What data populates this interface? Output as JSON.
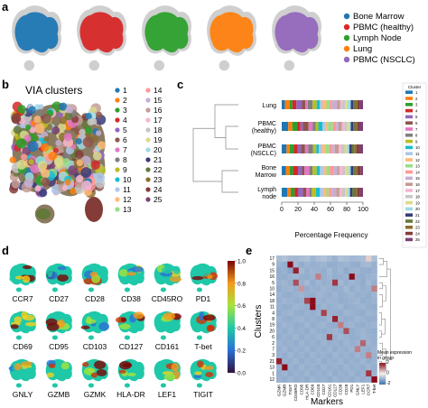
{
  "panels": {
    "a": {
      "letter": "a",
      "legend": [
        {
          "label": "Bone Marrow",
          "color": "#1f77b4"
        },
        {
          "label": "PBMC (healthy)",
          "color": "#d62728"
        },
        {
          "label": "Lymph Node",
          "color": "#2ca02c"
        },
        {
          "label": "Lung",
          "color": "#ff7f0e"
        },
        {
          "label": "PBMC (NSCLC)",
          "color": "#9467bd"
        }
      ],
      "background_color": "#cfcfcf"
    },
    "b": {
      "letter": "b",
      "title": "VIA clusters",
      "clusters": [
        "1",
        "2",
        "3",
        "4",
        "5",
        "6",
        "7",
        "8",
        "9",
        "10",
        "11",
        "12",
        "13",
        "14",
        "15",
        "16",
        "17",
        "18",
        "19",
        "20",
        "21",
        "22",
        "23",
        "24",
        "25"
      ],
      "colors": [
        "#1f77b4",
        "#ff7f0e",
        "#2ca02c",
        "#d62728",
        "#9467bd",
        "#8c564b",
        "#e377c2",
        "#7f7f7f",
        "#bcbd22",
        "#17becf",
        "#aec7e8",
        "#ffbb78",
        "#98df8a",
        "#ff9896",
        "#c5b0d5",
        "#c49c94",
        "#f7b6d2",
        "#c7c7c7",
        "#dbdb8d",
        "#9edae5",
        "#393b79",
        "#637939",
        "#8c6d31",
        "#843c39",
        "#7b4173"
      ]
    },
    "c": {
      "letter": "c",
      "legend_title": "Cluster",
      "row_labels": [
        "Lung",
        "PBMC\n(healthy)",
        "PBMC\n(NSCLC)",
        "Bone\nMarrow",
        "Lymph\nnode"
      ],
      "x_ticks": [
        "0",
        "20",
        "40",
        "60",
        "80",
        "100"
      ],
      "xlabel": "Percentage Frequency"
    },
    "d": {
      "letter": "d",
      "markers": [
        "CCR7",
        "CD27",
        "CD28",
        "CD38",
        "CD45RO",
        "PD1",
        "CD69",
        "CD95",
        "CD103",
        "CD127",
        "CD161",
        "T-bet",
        "GNLY",
        "GZMB",
        "GZMK",
        "HLA-DR",
        "LEF1",
        "TIGIT"
      ],
      "colorbar_ticks": [
        "1.0",
        "0.8",
        "0.6",
        "0.4",
        "0.2",
        "0.0"
      ]
    },
    "e": {
      "letter": "e",
      "ylabel": "Clusters",
      "xlabel": "Markers",
      "row_labels": [
        "17",
        "9",
        "15",
        "16",
        "5",
        "10",
        "14",
        "18",
        "11",
        "4",
        "8",
        "19",
        "20",
        "6",
        "2",
        "7",
        "3",
        "21",
        "13",
        "1",
        "12"
      ],
      "col_labels": [
        "GZMK",
        "GZMB",
        "TIGIT",
        "CD45RO",
        "CD95",
        "HLA-DR",
        "CD69",
        "CD103",
        "CD27",
        "CD161",
        "CD127",
        "CD38",
        "CD28",
        "PD1",
        "GNLY",
        "LEF1",
        "CCR7",
        "T-bet"
      ],
      "colorbar_label": "Mean expression\nin group",
      "colorbar_ticks": [
        "-2",
        "0",
        "2"
      ]
    }
  },
  "chart_data": [
    {
      "type": "bar",
      "stacked": true,
      "orientation": "horizontal",
      "categories": [
        "Lung",
        "PBMC (healthy)",
        "PBMC (NSCLC)",
        "Bone Marrow",
        "Lymph node"
      ],
      "xlabel": "Percentage Frequency",
      "xlim": [
        0,
        100
      ],
      "series_clusters": [
        "1",
        "2",
        "3",
        "4",
        "5",
        "6",
        "7",
        "8",
        "9",
        "10",
        "11",
        "12",
        "13",
        "14",
        "15",
        "16",
        "17",
        "18",
        "19",
        "20",
        "21",
        "22",
        "23",
        "24",
        "25"
      ],
      "values_percent": [
        [
          4,
          6,
          3,
          5,
          7,
          4,
          3,
          6,
          5,
          4,
          3,
          5,
          4,
          3,
          6,
          4,
          2,
          4,
          3,
          4,
          3,
          2,
          3,
          3,
          4
        ],
        [
          8,
          5,
          6,
          4,
          3,
          7,
          5,
          4,
          3,
          5,
          4,
          3,
          6,
          4,
          3,
          4,
          3,
          3,
          3,
          2,
          3,
          2,
          3,
          2,
          5
        ],
        [
          6,
          4,
          5,
          5,
          4,
          5,
          4,
          6,
          4,
          3,
          4,
          5,
          4,
          4,
          3,
          5,
          3,
          4,
          3,
          3,
          3,
          3,
          3,
          3,
          5
        ],
        [
          5,
          5,
          4,
          6,
          5,
          3,
          6,
          4,
          5,
          4,
          5,
          3,
          4,
          5,
          4,
          3,
          4,
          3,
          4,
          3,
          3,
          3,
          2,
          4,
          3
        ],
        [
          7,
          4,
          5,
          4,
          6,
          4,
          4,
          3,
          5,
          5,
          4,
          4,
          3,
          4,
          5,
          4,
          3,
          4,
          3,
          3,
          3,
          3,
          3,
          3,
          4
        ]
      ]
    },
    {
      "type": "heatmap",
      "rows": [
        "17",
        "9",
        "15",
        "16",
        "5",
        "10",
        "14",
        "18",
        "11",
        "4",
        "8",
        "19",
        "20",
        "6",
        "2",
        "7",
        "3",
        "21",
        "13",
        "1",
        "12"
      ],
      "cols": [
        "GZMK",
        "GZMB",
        "TIGIT",
        "CD45RO",
        "CD95",
        "HLA-DR",
        "CD69",
        "CD103",
        "CD27",
        "CD161",
        "CD127",
        "CD38",
        "CD28",
        "PD1",
        "GNLY",
        "LEF1",
        "CCR7",
        "T-bet"
      ],
      "zlim": [
        -2,
        2
      ],
      "values": [
        [
          0.0,
          0.2,
          -0.1,
          -0.2,
          0.0,
          0.1,
          -0.3,
          0.0,
          0.2,
          -0.1,
          -0.4,
          0.1,
          0.0,
          -0.2,
          -0.1,
          0.0,
          0.3,
          0.1
        ],
        [
          -0.3,
          -0.5,
          2.2,
          -0.2,
          -0.6,
          -0.3,
          -0.5,
          -0.4,
          -0.3,
          -0.6,
          -0.5,
          -0.4,
          -0.3,
          -0.5,
          -0.6,
          -0.2,
          -0.1,
          -0.4
        ],
        [
          -0.6,
          -0.4,
          -0.8,
          1.8,
          -0.2,
          -0.5,
          -0.3,
          -0.4,
          -0.6,
          -0.2,
          -0.5,
          -0.3,
          -0.7,
          -0.4,
          -0.3,
          -0.5,
          -0.6,
          -0.4
        ],
        [
          -0.5,
          -0.6,
          -0.4,
          -0.3,
          -0.5,
          -0.6,
          -0.4,
          1.0,
          -0.5,
          -0.3,
          -0.6,
          -0.5,
          -0.4,
          2.0,
          -0.5,
          -0.6,
          -0.4,
          -0.3
        ],
        [
          -0.4,
          -0.3,
          -0.5,
          1.4,
          -0.4,
          -0.2,
          -0.6,
          -0.3,
          -0.5,
          -0.4,
          1.6,
          -0.2,
          -0.5,
          -0.3,
          -0.4,
          -0.6,
          -0.2,
          -0.5
        ],
        [
          -0.6,
          -0.4,
          -0.3,
          -0.5,
          0.8,
          -0.6,
          -0.4,
          -0.5,
          -0.3,
          -0.4,
          -0.6,
          -0.5,
          -0.2,
          -0.6,
          -0.3,
          -0.5,
          -0.4,
          1.0
        ],
        [
          -0.3,
          -0.5,
          -0.6,
          -0.4,
          -0.3,
          -0.5,
          -0.6,
          -0.3,
          -0.4,
          -0.5,
          -0.3,
          -0.6,
          -0.4,
          -0.3,
          -0.5,
          -0.4,
          -0.6,
          -0.3
        ],
        [
          -0.5,
          -0.3,
          -0.4,
          -0.6,
          -0.5,
          1.5,
          2.2,
          -0.4,
          -0.5,
          -0.3,
          -0.4,
          -0.6,
          -0.5,
          -0.4,
          -0.3,
          -0.6,
          -0.5,
          -0.4
        ],
        [
          -0.4,
          -0.6,
          -0.5,
          -0.3,
          -0.4,
          -0.5,
          2.0,
          -0.6,
          -0.3,
          -0.5,
          -0.4,
          -0.3,
          -0.6,
          -0.5,
          -0.4,
          -0.3,
          -0.5,
          -0.6
        ],
        [
          -0.6,
          -0.4,
          -0.3,
          -0.5,
          -0.6,
          -0.4,
          -0.5,
          -0.3,
          1.5,
          -0.4,
          -0.5,
          -0.6,
          -0.3,
          -0.4,
          -0.5,
          -0.6,
          -0.3,
          -0.4
        ],
        [
          -0.3,
          -0.5,
          -0.6,
          -0.4,
          -0.3,
          -0.5,
          -0.4,
          -0.6,
          -0.5,
          -0.3,
          1.8,
          -0.4,
          -0.6,
          -0.5,
          -0.3,
          -0.4,
          -0.6,
          -0.5
        ],
        [
          -0.5,
          -0.3,
          -0.4,
          -0.6,
          -0.5,
          -0.3,
          -0.6,
          -0.4,
          -0.3,
          -0.5,
          -0.6,
          1.0,
          -0.4,
          -0.3,
          -0.5,
          -0.6,
          -0.4,
          -0.3
        ],
        [
          -0.4,
          -0.6,
          -0.3,
          -0.5,
          -0.4,
          -0.6,
          -0.3,
          -0.5,
          -0.6,
          -0.4,
          -0.3,
          -0.5,
          1.4,
          -0.6,
          -0.4,
          -0.3,
          -0.5,
          -0.6
        ],
        [
          -0.6,
          -0.4,
          -0.5,
          -0.3,
          -0.6,
          -0.4,
          -0.5,
          -0.3,
          -0.4,
          1.6,
          -0.5,
          -0.3,
          -0.4,
          -0.6,
          -0.5,
          -0.3,
          -0.4,
          -0.5
        ],
        [
          -0.3,
          -0.5,
          -0.4,
          -0.6,
          -0.3,
          -0.5,
          -0.4,
          -0.6,
          -0.3,
          -0.5,
          -0.4,
          -0.6,
          -0.3,
          -0.5,
          -0.4,
          1.2,
          -0.3,
          -0.5
        ],
        [
          -0.5,
          -0.3,
          -0.6,
          -0.4,
          -0.5,
          -0.3,
          -0.6,
          -0.4,
          -0.5,
          -0.3,
          -0.6,
          -0.4,
          -0.5,
          -0.3,
          1.0,
          -0.4,
          -0.5,
          -0.3
        ],
        [
          -0.4,
          -0.6,
          -0.3,
          -0.5,
          -0.4,
          -0.6,
          -0.3,
          -0.5,
          -0.4,
          -0.6,
          -0.3,
          -0.5,
          -0.4,
          -0.6,
          -0.3,
          -0.5,
          1.0,
          -0.4
        ],
        [
          1.8,
          -0.4,
          -0.5,
          -0.3,
          -0.6,
          -0.4,
          -0.5,
          -0.3,
          -0.6,
          -0.4,
          -0.5,
          -0.3,
          -0.6,
          -0.4,
          -0.5,
          -0.3,
          -0.6,
          -0.4
        ],
        [
          -0.3,
          2.0,
          -0.4,
          -0.6,
          -0.3,
          -0.5,
          -0.4,
          -0.6,
          -0.3,
          -0.5,
          -0.4,
          -0.6,
          -0.3,
          -0.5,
          -0.4,
          -0.6,
          -0.3,
          -0.5
        ],
        [
          -0.5,
          -0.3,
          -0.6,
          -0.4,
          -0.5,
          -0.3,
          -0.6,
          -0.4,
          -0.5,
          -0.3,
          -0.6,
          -0.4,
          -0.5,
          -0.3,
          -0.6,
          -0.4,
          1.6,
          -0.3
        ],
        [
          -0.4,
          -0.6,
          -0.3,
          -0.5,
          -0.4,
          -0.6,
          -0.3,
          -0.5,
          -0.4,
          -0.6,
          -0.3,
          -0.5,
          -0.4,
          -0.6,
          -0.3,
          -0.5,
          -0.4,
          2.0
        ]
      ]
    }
  ]
}
